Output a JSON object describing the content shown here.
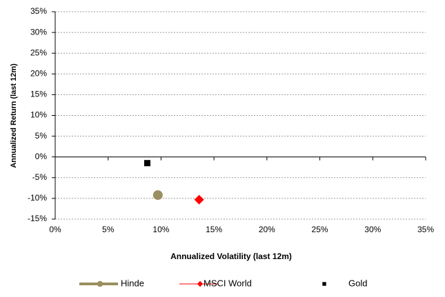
{
  "chart_data": {
    "type": "scatter",
    "xlabel": "Annualized Volatility (last 12m)",
    "ylabel": "Annualized Return (last 12m)",
    "xlim": [
      0,
      35
    ],
    "xticks": [
      {
        "value": 0,
        "label": "0%"
      },
      {
        "value": 5,
        "label": "5%"
      },
      {
        "value": 10,
        "label": "10%"
      },
      {
        "value": 15,
        "label": "15%"
      },
      {
        "value": 20,
        "label": "20%"
      },
      {
        "value": 25,
        "label": "25%"
      },
      {
        "value": 30,
        "label": "30%"
      },
      {
        "value": 35,
        "label": "35%"
      }
    ],
    "ylim": [
      -15,
      35
    ],
    "yticks": [
      {
        "value": -15,
        "label": "-15%"
      },
      {
        "value": -10,
        "label": "-10%"
      },
      {
        "value": -5,
        "label": "-5%"
      },
      {
        "value": 0,
        "label": "0%"
      },
      {
        "value": 5,
        "label": "5%"
      },
      {
        "value": 10,
        "label": "10%"
      },
      {
        "value": 15,
        "label": "15%"
      },
      {
        "value": 20,
        "label": "20%"
      },
      {
        "value": 25,
        "label": "25%"
      },
      {
        "value": 30,
        "label": "30%"
      },
      {
        "value": 35,
        "label": "35%"
      }
    ],
    "grid": true,
    "legend": "bottom",
    "series": [
      {
        "name": "Hinde",
        "color": "#9a8f60",
        "marker": "circle",
        "legend_line": "thick",
        "x": [
          9.7
        ],
        "y": [
          -9.2
        ]
      },
      {
        "name": "MSCI World",
        "color": "#ff0000",
        "marker": "diamond",
        "legend_line": "thin",
        "x": [
          13.6
        ],
        "y": [
          -10.3
        ]
      },
      {
        "name": "Gold",
        "color": "#000000",
        "marker": "square",
        "legend_line": "none",
        "x": [
          8.7
        ],
        "y": [
          -1.5
        ]
      }
    ]
  }
}
